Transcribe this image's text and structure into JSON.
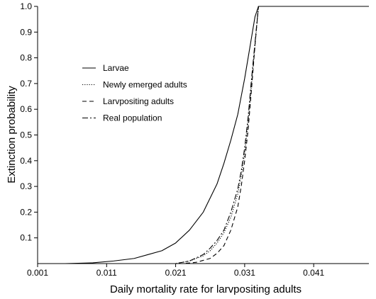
{
  "chart_data": {
    "type": "line",
    "title": "",
    "xlabel": "Daily mortality rate for larvpositing adults",
    "ylabel": "Extinction probability",
    "xlim": [
      0.001,
      0.049
    ],
    "ylim": [
      0,
      1.0
    ],
    "x_ticks": [
      "0.001",
      "0.011",
      "0.021",
      "0.031",
      "0.041"
    ],
    "y_ticks": [
      "0.1",
      "0.2",
      "0.3",
      "0.4",
      "0.5",
      "0.6",
      "0.7",
      "0.8",
      "0.9",
      "1.0"
    ],
    "grid": false,
    "legend_position": "upper-left",
    "series": [
      {
        "name": "Larvae",
        "style": "solid",
        "x": [
          0.005,
          0.009,
          0.012,
          0.015,
          0.017,
          0.019,
          0.021,
          0.023,
          0.025,
          0.027,
          0.028,
          0.029,
          0.03,
          0.0305,
          0.031,
          0.0315,
          0.032,
          0.0325,
          0.033,
          0.034,
          0.049
        ],
        "y": [
          0.0,
          0.003,
          0.01,
          0.02,
          0.035,
          0.05,
          0.08,
          0.13,
          0.2,
          0.31,
          0.39,
          0.48,
          0.58,
          0.65,
          0.72,
          0.8,
          0.88,
          0.96,
          1.0,
          1.0,
          1.0
        ]
      },
      {
        "name": "Newly emerged adults",
        "style": "dotted",
        "x": [
          0.005,
          0.021,
          0.023,
          0.025,
          0.026,
          0.027,
          0.028,
          0.029,
          0.03,
          0.0305,
          0.031,
          0.0315,
          0.032,
          0.0325,
          0.033,
          0.034,
          0.049
        ],
        "y": [
          0.0,
          0.0,
          0.01,
          0.03,
          0.05,
          0.08,
          0.12,
          0.18,
          0.27,
          0.34,
          0.43,
          0.55,
          0.7,
          0.85,
          1.0,
          1.0,
          1.0
        ]
      },
      {
        "name": "Larvpositing adults",
        "style": "dashed",
        "x": [
          0.005,
          0.022,
          0.024,
          0.026,
          0.027,
          0.028,
          0.029,
          0.03,
          0.0305,
          0.031,
          0.0315,
          0.032,
          0.0325,
          0.033,
          0.034,
          0.049
        ],
        "y": [
          0.0,
          0.0,
          0.005,
          0.02,
          0.04,
          0.07,
          0.13,
          0.22,
          0.3,
          0.4,
          0.52,
          0.68,
          0.85,
          1.0,
          1.0,
          1.0
        ]
      },
      {
        "name": "Real population",
        "style": "dashdot",
        "x": [
          0.005,
          0.021,
          0.023,
          0.025,
          0.026,
          0.027,
          0.028,
          0.029,
          0.03,
          0.0305,
          0.031,
          0.0315,
          0.032,
          0.0325,
          0.033,
          0.034,
          0.049
        ],
        "y": [
          0.0,
          0.0,
          0.01,
          0.035,
          0.06,
          0.09,
          0.13,
          0.2,
          0.29,
          0.36,
          0.45,
          0.57,
          0.72,
          0.86,
          1.0,
          1.0,
          1.0
        ]
      }
    ]
  }
}
